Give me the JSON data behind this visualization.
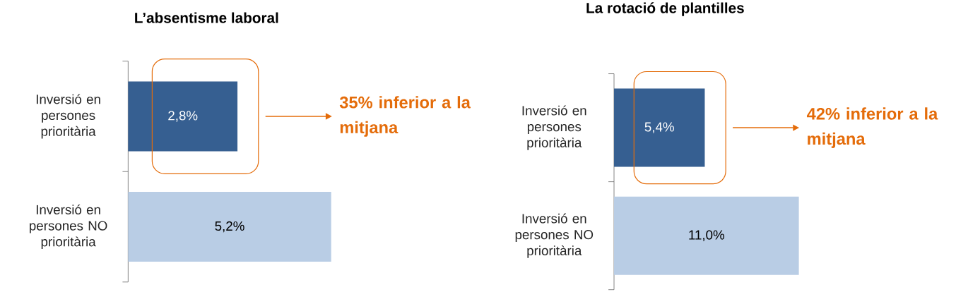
{
  "chart_data": [
    {
      "type": "bar",
      "orientation": "horizontal",
      "title": "L’absentisme laboral",
      "categories": [
        "Inversió en persones prioritària",
        "Inversió en persones NO prioritària"
      ],
      "values": [
        2.8,
        5.2
      ],
      "colors": [
        "#365f91",
        "#b9cde5"
      ],
      "value_labels": [
        "2,8%",
        "5,2%"
      ],
      "annotations": [
        "35% inferior a la mitjana"
      ]
    },
    {
      "type": "bar",
      "orientation": "horizontal",
      "title": "La rotació de plantilles",
      "categories": [
        "Inversió en persones prioritària",
        "Inversió en persones NO prioritària"
      ],
      "values": [
        5.4,
        11.0
      ],
      "colors": [
        "#365f91",
        "#b9cde5"
      ],
      "value_labels": [
        "5,4%",
        "11,0%"
      ],
      "annotations": [
        "42% inferior a la mitjana"
      ]
    }
  ]
}
